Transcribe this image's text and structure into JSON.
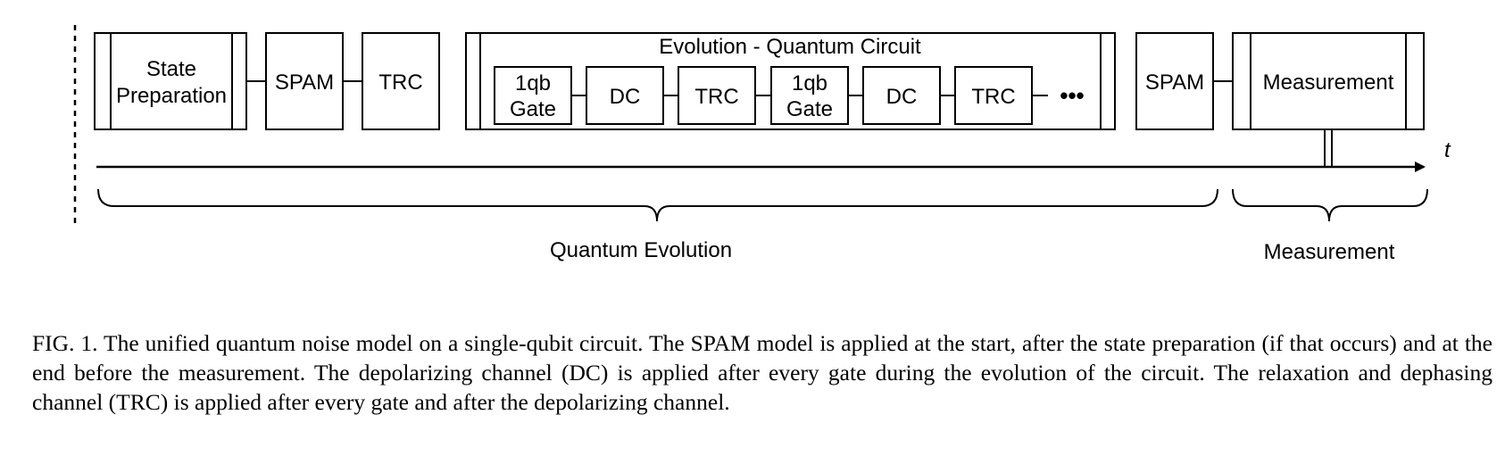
{
  "diagram": {
    "time_axis_label": "t",
    "blocks": {
      "state_preparation": [
        "State",
        "Preparation"
      ],
      "spam_start": "SPAM",
      "trc_start": "TRC",
      "evolution_title": "Evolution - Quantum Circuit",
      "gate_1": [
        "1qb",
        "Gate"
      ],
      "dc_1": "DC",
      "trc_1": "TRC",
      "gate_2": [
        "1qb",
        "Gate"
      ],
      "dc_2": "DC",
      "trc_2": "TRC",
      "ellipsis": "•••",
      "spam_end": "SPAM",
      "measurement_block": "Measurement"
    },
    "phases": {
      "quantum_evolution": "Quantum Evolution",
      "measurement": "Measurement"
    }
  },
  "caption": {
    "label": "FIG. 1.",
    "text": "The unified quantum noise model on a single-qubit circuit. The SPAM model is applied at the start, after the state preparation (if that occurs) and at the end before the measurement. The depolarizing channel (DC) is applied after every gate during the evolution of the circuit. The relaxation and dephasing channel (TRC) is applied after every gate and after the depolarizing channel."
  }
}
